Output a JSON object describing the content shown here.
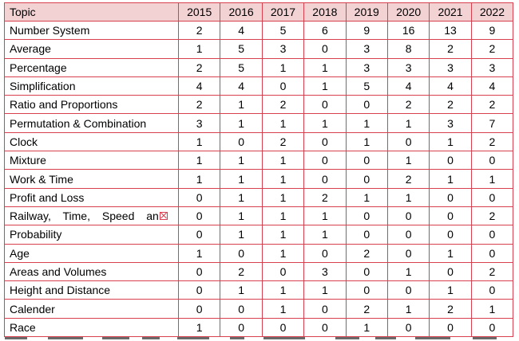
{
  "table": {
    "header": {
      "topic": "Topic",
      "years": [
        "2015",
        "2016",
        "2017",
        "2018",
        "2019",
        "2020",
        "2021",
        "2022"
      ]
    },
    "rows": [
      {
        "topic": "Number System",
        "values": [
          "2",
          "4",
          "5",
          "6",
          "9",
          "16",
          "13",
          "9"
        ]
      },
      {
        "topic": "Average",
        "values": [
          "1",
          "5",
          "3",
          "0",
          "3",
          "8",
          "2",
          "2"
        ]
      },
      {
        "topic": "Percentage",
        "values": [
          "2",
          "5",
          "1",
          "1",
          "3",
          "3",
          "3",
          "3"
        ]
      },
      {
        "topic": "Simplification",
        "values": [
          "4",
          "4",
          "0",
          "1",
          "5",
          "4",
          "4",
          "4"
        ]
      },
      {
        "topic": "Ratio and Proportions",
        "values": [
          "2",
          "1",
          "2",
          "0",
          "0",
          "2",
          "2",
          "2"
        ]
      },
      {
        "topic": "Permutation & Combination",
        "values": [
          "3",
          "1",
          "1",
          "1",
          "1",
          "1",
          "3",
          "7"
        ]
      },
      {
        "topic": "Clock",
        "values": [
          "1",
          "0",
          "2",
          "0",
          "1",
          "0",
          "1",
          "2"
        ]
      },
      {
        "topic": "Mixture",
        "values": [
          "1",
          "1",
          "1",
          "0",
          "0",
          "1",
          "0",
          "0"
        ]
      },
      {
        "topic": "Work & Time",
        "values": [
          "1",
          "1",
          "1",
          "0",
          "0",
          "2",
          "1",
          "1"
        ]
      },
      {
        "topic": "Profit and Loss",
        "values": [
          "0",
          "1",
          "1",
          "2",
          "1",
          "1",
          "0",
          "0"
        ]
      },
      {
        "topic": "Railway, Time, Speed an",
        "values": [
          "0",
          "1",
          "1",
          "1",
          "0",
          "0",
          "0",
          "2"
        ]
      },
      {
        "topic": "Probability",
        "values": [
          "0",
          "1",
          "1",
          "1",
          "0",
          "0",
          "0",
          "0"
        ]
      },
      {
        "topic": "Age",
        "values": [
          "1",
          "0",
          "1",
          "0",
          "2",
          "0",
          "1",
          "0"
        ]
      },
      {
        "topic": "Areas and Volumes",
        "values": [
          "0",
          "2",
          "0",
          "3",
          "0",
          "1",
          "0",
          "2"
        ]
      },
      {
        "topic": "Height and Distance",
        "values": [
          "0",
          "1",
          "1",
          "1",
          "0",
          "0",
          "1",
          "0"
        ]
      },
      {
        "topic": "Calender",
        "values": [
          "0",
          "0",
          "1",
          "0",
          "2",
          "1",
          "2",
          "1"
        ]
      },
      {
        "topic": "Race",
        "values": [
          "1",
          "0",
          "0",
          "0",
          "1",
          "0",
          "0",
          "0"
        ]
      }
    ]
  },
  "colors": {
    "border": "#d8404f",
    "header_background": "#f3d2d4",
    "text": "#000000"
  },
  "icons": {
    "truncated_marker": "broken-cell-icon"
  }
}
